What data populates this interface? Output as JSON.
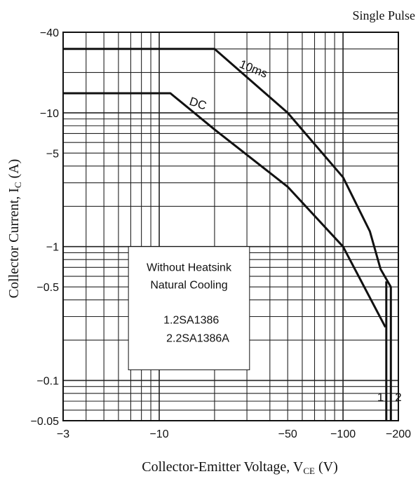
{
  "chart_data": {
    "type": "line",
    "title": "Single Pulse",
    "xlabel": "Collector-Emitter Voltage, V",
    "xlabel_sub": "CE",
    "xlabel_unit": " (V)",
    "ylabel": "Collector Current, I",
    "ylabel_sub": "C",
    "ylabel_unit": " (A)",
    "x_scale": "log",
    "y_scale": "log",
    "xlim": [
      3,
      200
    ],
    "ylim": [
      0.05,
      40
    ],
    "grid": true,
    "x_ticks": [
      {
        "value": 3,
        "label": "−3"
      },
      {
        "value": 10,
        "label": "−10"
      },
      {
        "value": 50,
        "label": "−50"
      },
      {
        "value": 100,
        "label": "−100"
      },
      {
        "value": 200,
        "label": "−200"
      }
    ],
    "y_ticks": [
      {
        "value": 40,
        "label": "−40"
      },
      {
        "value": 10,
        "label": "−10"
      },
      {
        "value": 5,
        "label": "−5"
      },
      {
        "value": 1,
        "label": "−1"
      },
      {
        "value": 0.5,
        "label": "−0.5"
      },
      {
        "value": 0.1,
        "label": "−0.1"
      },
      {
        "value": 0.05,
        "label": "−0.05"
      }
    ],
    "series": [
      {
        "name": "10ms",
        "label_at": {
          "x": 32,
          "y": 20
        },
        "x": [
          3,
          20,
          50,
          100,
          140,
          160,
          182
        ],
        "y": [
          30,
          30,
          10,
          3.3,
          1.3,
          0.68,
          0.5
        ]
      },
      {
        "name": "DC",
        "label_at": {
          "x": 16,
          "y": 11
        },
        "x": [
          3,
          11.5,
          20,
          50,
          100,
          170
        ],
        "y": [
          14,
          14,
          7.5,
          2.8,
          1.0,
          0.25
        ]
      },
      {
        "name": "1",
        "label_at": {
          "x": 160,
          "y": 0.07
        },
        "x": [
          172,
          172
        ],
        "y": [
          0.05,
          0.55
        ]
      },
      {
        "name": "2",
        "label_at": {
          "x": 200,
          "y": 0.07
        },
        "x": [
          182,
          182
        ],
        "y": [
          0.05,
          0.5
        ]
      }
    ],
    "annotation_box": {
      "lines": [
        "Without Heatsink",
        "Natural Cooling",
        "1.2SA1386",
        "2.2SA1386A"
      ]
    }
  }
}
